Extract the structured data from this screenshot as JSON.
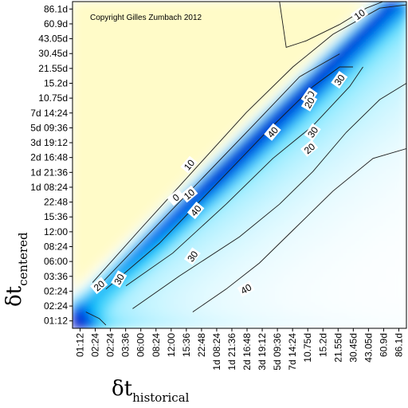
{
  "chart_data": {
    "type": "heatmap",
    "title": "",
    "copyright": "Copyright Gilles Zumbach 2012",
    "xlabel": {
      "symbol": "δt",
      "subscript": "historical"
    },
    "ylabel": {
      "symbol": "δt",
      "subscript": "centered"
    },
    "x_ticks": [
      "01:12",
      "02:24",
      "02:24",
      "03:36",
      "06:00",
      "08:24",
      "12:00",
      "15:36",
      "22:48",
      "1d 08:24",
      "1d 21:36",
      "2d 16:48",
      "3d 19:12",
      "5d 09:36",
      "7d 14:24",
      "10.75d",
      "15.2d",
      "21.55d",
      "30.45d",
      "43.05d",
      "60.9d",
      "86.1d"
    ],
    "y_ticks": [
      "01:12",
      "02:24",
      "02:24",
      "03:36",
      "06:00",
      "08:24",
      "12:00",
      "15:36",
      "22:48",
      "1d 08:24",
      "1d 21:36",
      "2d 16:48",
      "3d 19:12",
      "5d 09:36",
      "7d 14:24",
      "10.75d",
      "15.2d",
      "21.55d",
      "30.45d",
      "43.05d",
      "60.9d",
      "86.1d"
    ],
    "contour_levels": [
      -10,
      -20,
      -30,
      -40,
      0,
      10,
      20,
      30
    ],
    "contour_labels": [
      "10",
      "20",
      "30",
      "10",
      "20",
      "30",
      "40",
      "0",
      "10",
      "40",
      "20",
      "30",
      "20",
      "30",
      "40"
    ],
    "value_range": [
      -45,
      15
    ],
    "colors": {
      "high": "#fffbc8",
      "zero": "#ffffff",
      "low": "#001ed2"
    }
  }
}
